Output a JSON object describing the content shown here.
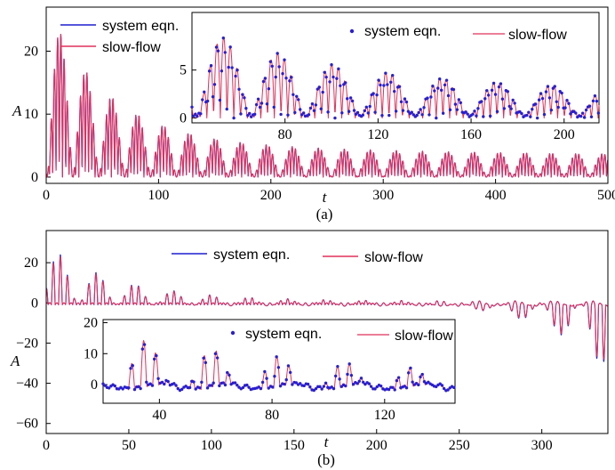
{
  "chart_data": [
    {
      "type": "line",
      "caption": "(a)",
      "xlabel": "t",
      "ylabel": "A",
      "xlim": [
        0,
        500
      ],
      "ylim": [
        -1,
        27
      ],
      "xticks": [
        "0",
        "100",
        "200",
        "300",
        "400",
        "500"
      ],
      "yticks": [
        "0",
        "10",
        "20"
      ],
      "legend_position": "top-left",
      "colors": {
        "system": "#1f1fd0",
        "slow": "#e0305a"
      },
      "series": [
        {
          "name": "system eqn.",
          "color": "#1f1fd0",
          "style": "line"
        },
        {
          "name": "slow-flow",
          "color": "#e0305a",
          "style": "line"
        }
      ],
      "envelope": {
        "description_values": "peak amplitude per burst (t, A)",
        "bursts": [
          [
            8,
            25.5
          ],
          [
            32,
            17
          ],
          [
            55,
            11
          ],
          [
            77,
            12
          ],
          [
            100,
            9
          ],
          [
            122,
            9.5
          ],
          [
            145,
            7.5
          ],
          [
            168,
            8
          ],
          [
            190,
            7
          ],
          [
            213,
            6.5
          ],
          [
            236,
            6
          ],
          [
            259,
            6
          ],
          [
            283,
            5.5
          ],
          [
            306,
            5
          ],
          [
            329,
            5
          ],
          [
            352,
            4.5
          ],
          [
            375,
            4.5
          ],
          [
            398,
            4
          ],
          [
            421,
            4
          ],
          [
            444,
            3.5
          ],
          [
            467,
            3.5
          ],
          [
            490,
            3.5
          ]
        ]
      },
      "inset": {
        "xlim": [
          40,
          215
        ],
        "ylim": [
          -0.5,
          11
        ],
        "xticks": [
          "80",
          "120",
          "160",
          "200"
        ],
        "yticks": [
          "0",
          "5"
        ],
        "legend_position": "top",
        "series": [
          {
            "name": "system eqn.",
            "color": "#2a1fd0",
            "style": "dots"
          },
          {
            "name": "slow-flow",
            "color": "#e0305a",
            "style": "line"
          }
        ]
      }
    },
    {
      "type": "line",
      "caption": "(b)",
      "xlabel": "t",
      "ylabel": "A",
      "xlim": [
        0,
        340
      ],
      "ylim": [
        -65,
        36
      ],
      "xticks": [
        "0",
        "50",
        "100",
        "150",
        "200",
        "250",
        "300"
      ],
      "yticks": [
        "20",
        "0",
        "−20",
        "−40",
        "−60"
      ],
      "legend_position": "top-center",
      "series": [
        {
          "name": "system eqn.",
          "color": "#1f1fd0",
          "style": "line"
        },
        {
          "name": "slow-flow",
          "color": "#e0305a",
          "style": "line"
        }
      ],
      "inset": {
        "xlim": [
          20,
          145
        ],
        "ylim": [
          -6,
          21
        ],
        "xticks": [
          "40",
          "80",
          "120"
        ],
        "yticks": [
          "20",
          "10",
          "0"
        ],
        "legend_position": "top-right",
        "series": [
          {
            "name": "system eqn.",
            "color": "#2a1fd0",
            "style": "dots"
          },
          {
            "name": "slow-flow",
            "color": "#e0305a",
            "style": "line"
          }
        ]
      }
    }
  ]
}
